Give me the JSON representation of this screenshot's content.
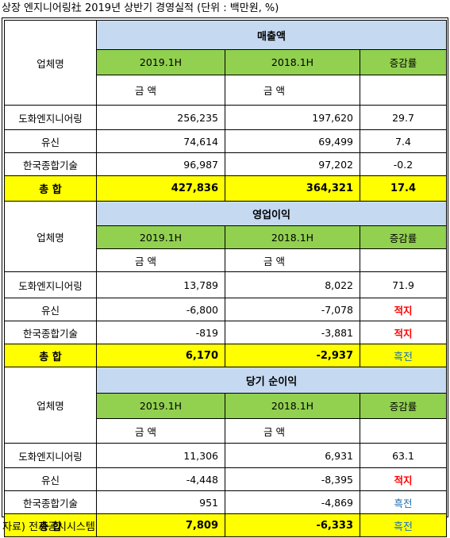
{
  "title": "상장 엔지니어링社 2019년 상반기 경영실적 (단위 : 백만원, %)",
  "source": "자료) 전자공시시스템",
  "colors": {
    "section_header": "#c5d9f1",
    "period_header": "#92d050",
    "total_row": "#ffff00",
    "loss": "#ff0000",
    "turnaround": "#1f6fb2"
  },
  "sections": [
    {
      "name": "매출액",
      "company_header": "업체명",
      "period1": "2019.1H",
      "period2": "2018.1H",
      "change_header": "증감률",
      "unit1": "금 액",
      "unit2": "금 액",
      "rows": [
        {
          "company": "도화엔지니어링",
          "v2019": "256,235",
          "v2018": "197,620",
          "change": "29.7"
        },
        {
          "company": "유신",
          "v2019": "74,614",
          "v2018": "69,499",
          "change": "7.4"
        },
        {
          "company": "한국종합기술",
          "v2019": "96,987",
          "v2018": "97,202",
          "change": "-0.2"
        }
      ],
      "total": {
        "label": "총  합",
        "v2019": "427,836",
        "v2018": "364,321",
        "change": "17.4"
      }
    },
    {
      "name": "영업이익",
      "company_header": "업체명",
      "period1": "2019.1H",
      "period2": "2018.1H",
      "change_header": "증감률",
      "unit1": "금 액",
      "unit2": "금 액",
      "rows": [
        {
          "company": "도화엔지니어링",
          "v2019": "13,789",
          "v2018": "8,022",
          "change": "71.9"
        },
        {
          "company": "유신",
          "v2019": "-6,800",
          "v2018": "-7,078",
          "change": "적지"
        },
        {
          "company": "한국종합기술",
          "v2019": "-819",
          "v2018": "-3,881",
          "change": "적지"
        }
      ],
      "total": {
        "label": "총  합",
        "v2019": "6,170",
        "v2018": "-2,937",
        "change": "흑전"
      }
    },
    {
      "name": "당기 순이익",
      "company_header": "업체명",
      "period1": "2019.1H",
      "period2": "2018.1H",
      "change_header": "증감률",
      "unit1": "금 액",
      "unit2": "금 액",
      "rows": [
        {
          "company": "도화엔지니어링",
          "v2019": "11,306",
          "v2018": "6,931",
          "change": "63.1"
        },
        {
          "company": "유신",
          "v2019": "-4,448",
          "v2018": "-8,395",
          "change": "적지"
        },
        {
          "company": "한국종합기술",
          "v2019": "951",
          "v2018": "-4,869",
          "change": "흑전"
        }
      ],
      "total": {
        "label": "총  합",
        "v2019": "7,809",
        "v2018": "-6,333",
        "change": "흑전"
      }
    }
  ]
}
